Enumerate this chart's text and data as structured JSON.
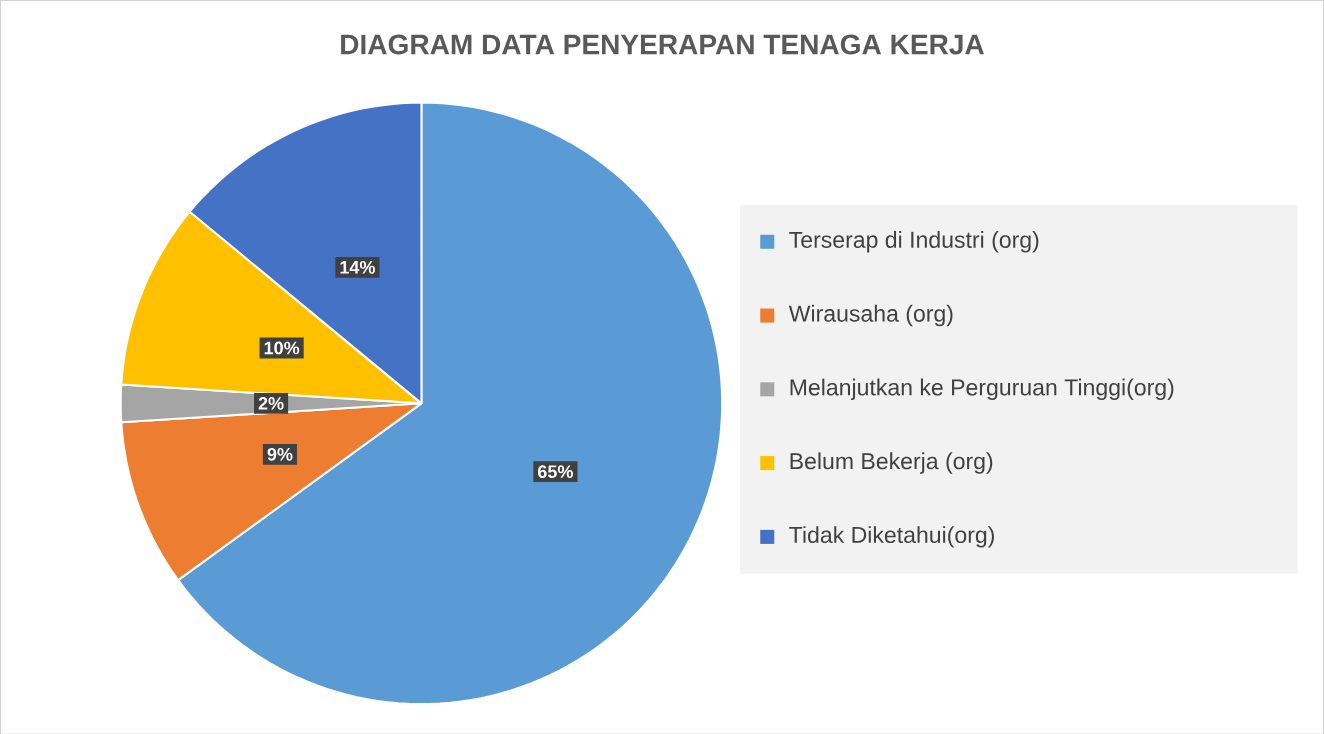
{
  "chart_data": {
    "type": "pie",
    "title": "DIAGRAM DATA PENYERAPAN TENAGA KERJA",
    "categories": [
      "Terserap di Industri (org)",
      "Wirausaha (org)",
      "Melanjutkan ke Perguruan Tinggi(org)",
      "Belum Bekerja (org)",
      "Tidak Diketahui(org)"
    ],
    "values": [
      65,
      9,
      2,
      10,
      14
    ],
    "colors": [
      "#5b9bd5",
      "#ed7d31",
      "#a5a5a5",
      "#ffc000",
      "#4472c4"
    ],
    "value_labels": [
      "65%",
      "9%",
      "2%",
      "10%",
      "14%"
    ],
    "legend": "right"
  }
}
